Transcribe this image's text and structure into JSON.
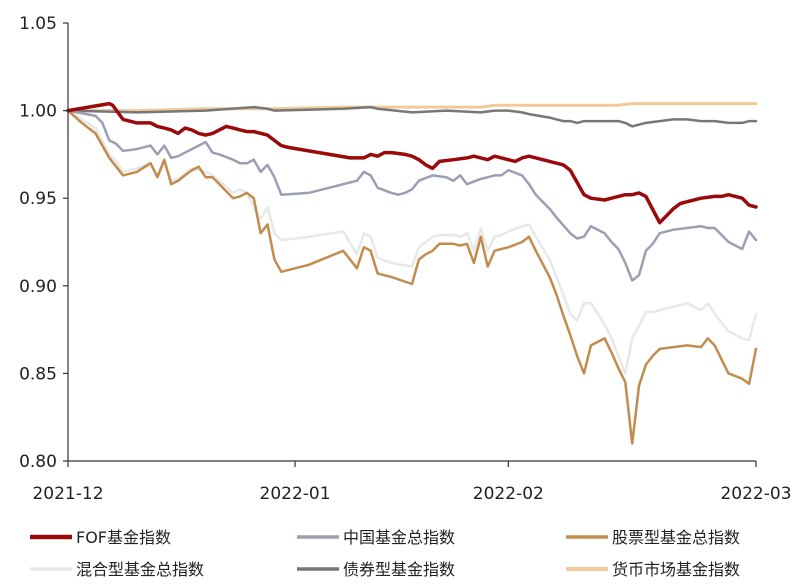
{
  "chart_data": {
    "type": "line",
    "title": "",
    "xlabel": "",
    "ylabel": "",
    "ylim": [
      0.8,
      1.05
    ],
    "y_ticks": [
      "0.80",
      "0.85",
      "0.90",
      "0.95",
      "1.00",
      "1.05"
    ],
    "y_tick_values": [
      0.8,
      0.85,
      0.9,
      0.95,
      1.0,
      1.05
    ],
    "x_range": [
      0,
      100
    ],
    "x_ticks": [
      {
        "x": 0,
        "label": "2021-12"
      },
      {
        "x": 33,
        "label": "2022-01"
      },
      {
        "x": 64,
        "label": "2022-02"
      },
      {
        "x": 100,
        "label": "2022-03"
      }
    ],
    "grid": false,
    "legend_position": "bottom",
    "series": [
      {
        "name": "FOF基金指数",
        "color": "#9b0a0a",
        "width": 3.5,
        "x": [
          0,
          3,
          6,
          6.5,
          8,
          10,
          12,
          13,
          14,
          15,
          16,
          17,
          18,
          19,
          20,
          21,
          22,
          23,
          24,
          25,
          26,
          27,
          29,
          31,
          32,
          35,
          38,
          41,
          43,
          44,
          45,
          46,
          47,
          49,
          50,
          51,
          52,
          53,
          54,
          56,
          58,
          59,
          60,
          61,
          62,
          64,
          65,
          66,
          67,
          69,
          71,
          72,
          73,
          74,
          75,
          76,
          78,
          79,
          80,
          81,
          82,
          83,
          84,
          86,
          87,
          88,
          89,
          90,
          92,
          94,
          95,
          96,
          98,
          99,
          100
        ],
        "values": [
          1.0,
          1.002,
          1.004,
          1.003,
          0.995,
          0.993,
          0.993,
          0.991,
          0.99,
          0.989,
          0.987,
          0.99,
          0.989,
          0.987,
          0.986,
          0.987,
          0.989,
          0.991,
          0.99,
          0.989,
          0.988,
          0.988,
          0.986,
          0.98,
          0.979,
          0.977,
          0.975,
          0.973,
          0.973,
          0.975,
          0.974,
          0.976,
          0.976,
          0.975,
          0.974,
          0.972,
          0.969,
          0.967,
          0.971,
          0.972,
          0.973,
          0.974,
          0.973,
          0.972,
          0.974,
          0.972,
          0.971,
          0.973,
          0.974,
          0.972,
          0.97,
          0.969,
          0.966,
          0.959,
          0.952,
          0.95,
          0.949,
          0.95,
          0.951,
          0.952,
          0.952,
          0.953,
          0.951,
          0.936,
          0.94,
          0.944,
          0.947,
          0.948,
          0.95,
          0.951,
          0.951,
          0.952,
          0.95,
          0.946,
          0.945
        ]
      },
      {
        "name": "中国基金总指数",
        "color": "#9a9fb4",
        "width": 2.5,
        "x": [
          0,
          4,
          5,
          6,
          7,
          8,
          10,
          12,
          13,
          14,
          15,
          16,
          18,
          19,
          20,
          21,
          22,
          24,
          25,
          26,
          27,
          28,
          29,
          30,
          31,
          35,
          40,
          42,
          43,
          44,
          45,
          47,
          48,
          49,
          50,
          51,
          53,
          55,
          56,
          57,
          58,
          60,
          62,
          63,
          64,
          66,
          67,
          68,
          70,
          71,
          73,
          74,
          75,
          76,
          78,
          79,
          80,
          81,
          82,
          83,
          84,
          85,
          86,
          88,
          90,
          92,
          93,
          94,
          96,
          98,
          99,
          100
        ],
        "values": [
          1.0,
          0.997,
          0.993,
          0.983,
          0.981,
          0.977,
          0.978,
          0.98,
          0.975,
          0.98,
          0.973,
          0.974,
          0.978,
          0.98,
          0.982,
          0.976,
          0.975,
          0.972,
          0.97,
          0.97,
          0.972,
          0.965,
          0.969,
          0.962,
          0.952,
          0.953,
          0.958,
          0.96,
          0.965,
          0.963,
          0.956,
          0.953,
          0.952,
          0.953,
          0.955,
          0.96,
          0.963,
          0.962,
          0.96,
          0.963,
          0.958,
          0.961,
          0.963,
          0.963,
          0.966,
          0.963,
          0.958,
          0.952,
          0.944,
          0.939,
          0.93,
          0.927,
          0.928,
          0.934,
          0.93,
          0.925,
          0.921,
          0.913,
          0.903,
          0.906,
          0.92,
          0.924,
          0.93,
          0.932,
          0.933,
          0.934,
          0.933,
          0.933,
          0.925,
          0.921,
          0.931,
          0.926
        ]
      },
      {
        "name": "股票型基金总指数",
        "color": "#c18c4e",
        "width": 2.5,
        "x": [
          0,
          2,
          4,
          6,
          7,
          8,
          10,
          12,
          13,
          14,
          15,
          16,
          17,
          18,
          19,
          20,
          21,
          22,
          24,
          25,
          26,
          27,
          28,
          29,
          30,
          31,
          35,
          40,
          42,
          43,
          44,
          45,
          47,
          50,
          51,
          52,
          53,
          54,
          56,
          57,
          58,
          59,
          60,
          61,
          62,
          63,
          64,
          66,
          67,
          68,
          70,
          71,
          72,
          73,
          74,
          75,
          76,
          78,
          79,
          80,
          81,
          82,
          83,
          84,
          85,
          86,
          88,
          90,
          92,
          93,
          94,
          96,
          98,
          99,
          100
        ],
        "values": [
          1.0,
          0.993,
          0.987,
          0.973,
          0.968,
          0.963,
          0.965,
          0.97,
          0.962,
          0.972,
          0.958,
          0.96,
          0.963,
          0.966,
          0.968,
          0.962,
          0.962,
          0.958,
          0.95,
          0.951,
          0.953,
          0.95,
          0.93,
          0.935,
          0.915,
          0.908,
          0.912,
          0.92,
          0.91,
          0.922,
          0.92,
          0.907,
          0.905,
          0.901,
          0.915,
          0.918,
          0.92,
          0.924,
          0.924,
          0.923,
          0.924,
          0.913,
          0.928,
          0.911,
          0.92,
          0.921,
          0.922,
          0.925,
          0.928,
          0.92,
          0.905,
          0.895,
          0.883,
          0.872,
          0.86,
          0.85,
          0.866,
          0.87,
          0.862,
          0.853,
          0.845,
          0.81,
          0.843,
          0.855,
          0.86,
          0.864,
          0.865,
          0.866,
          0.865,
          0.87,
          0.866,
          0.85,
          0.847,
          0.844,
          0.864
        ]
      },
      {
        "name": "混合型基金总指数",
        "color": "#e8e8e8",
        "width": 2.5,
        "x": [
          0,
          2,
          4,
          6,
          7,
          8,
          10,
          12,
          13,
          14,
          15,
          16,
          18,
          20,
          21,
          22,
          24,
          25,
          26,
          27,
          28,
          29,
          30,
          31,
          35,
          40,
          42,
          43,
          44,
          45,
          47,
          50,
          51,
          52,
          53,
          54,
          56,
          57,
          58,
          59,
          60,
          61,
          62,
          63,
          64,
          66,
          67,
          68,
          70,
          71,
          72,
          73,
          74,
          75,
          76,
          78,
          79,
          80,
          81,
          82,
          83,
          84,
          85,
          86,
          88,
          90,
          92,
          93,
          94,
          96,
          98,
          99,
          100
        ],
        "values": [
          1.0,
          0.995,
          0.99,
          0.975,
          0.971,
          0.965,
          0.967,
          0.97,
          0.962,
          0.97,
          0.96,
          0.961,
          0.967,
          0.965,
          0.963,
          0.96,
          0.953,
          0.955,
          0.953,
          0.945,
          0.938,
          0.945,
          0.93,
          0.926,
          0.928,
          0.931,
          0.918,
          0.93,
          0.928,
          0.916,
          0.913,
          0.911,
          0.922,
          0.925,
          0.928,
          0.929,
          0.929,
          0.928,
          0.93,
          0.92,
          0.933,
          0.92,
          0.928,
          0.929,
          0.931,
          0.934,
          0.935,
          0.928,
          0.915,
          0.905,
          0.895,
          0.884,
          0.88,
          0.89,
          0.89,
          0.878,
          0.87,
          0.86,
          0.85,
          0.87,
          0.877,
          0.885,
          0.885,
          0.886,
          0.888,
          0.89,
          0.886,
          0.89,
          0.884,
          0.874,
          0.87,
          0.869,
          0.884
        ]
      },
      {
        "name": "债券型基金指数",
        "color": "#777777",
        "width": 2.5,
        "x": [
          0,
          10,
          20,
          27,
          29,
          30,
          40,
          44,
          45,
          50,
          55,
          60,
          62,
          64,
          66,
          67,
          70,
          71,
          72,
          73,
          74,
          75,
          76,
          80,
          81,
          82,
          83,
          84,
          86,
          88,
          90,
          92,
          94,
          96,
          98,
          99,
          100
        ],
        "values": [
          1.0,
          0.999,
          1.0,
          1.002,
          1.001,
          1.0,
          1.001,
          1.002,
          1.001,
          0.999,
          1.0,
          0.999,
          1.0,
          1.0,
          0.999,
          0.998,
          0.996,
          0.995,
          0.994,
          0.994,
          0.993,
          0.994,
          0.994,
          0.994,
          0.993,
          0.991,
          0.992,
          0.993,
          0.994,
          0.995,
          0.995,
          0.994,
          0.994,
          0.993,
          0.993,
          0.994,
          0.994
        ]
      },
      {
        "name": "货币市场基金指数",
        "color": "#f2c99a",
        "width": 3,
        "x": [
          0,
          10,
          20,
          30,
          40,
          50,
          60,
          62,
          64,
          70,
          80,
          82,
          90,
          100
        ],
        "values": [
          1.0,
          1.0,
          1.001,
          1.001,
          1.002,
          1.002,
          1.002,
          1.003,
          1.003,
          1.003,
          1.003,
          1.004,
          1.004,
          1.004
        ]
      }
    ]
  }
}
